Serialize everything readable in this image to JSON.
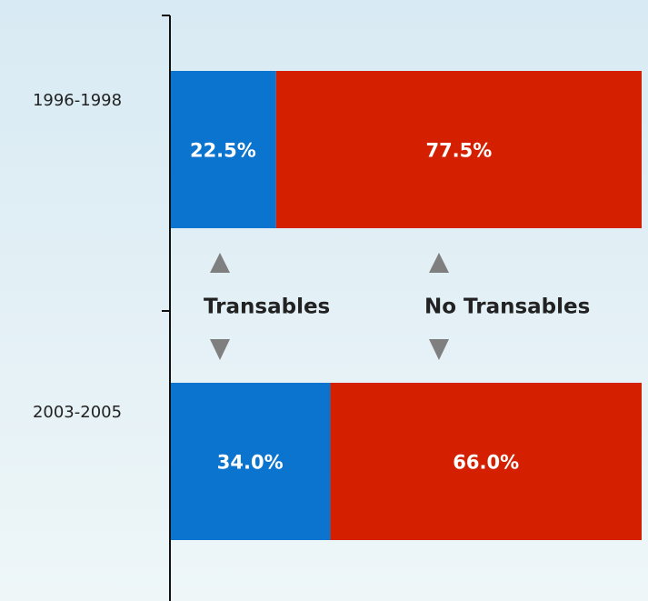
{
  "chart_data": {
    "type": "stacked-bar",
    "categories": [
      "1996-1998",
      "2003-2005"
    ],
    "xlim": [
      0,
      100
    ],
    "series": [
      {
        "name": "Transables",
        "color": "#0b74cf",
        "values": [
          22.5,
          34.0
        ],
        "value_labels": [
          "22.5%",
          "34.0%"
        ]
      },
      {
        "name": "No Transables",
        "color": "#d42000",
        "values": [
          77.5,
          66.0
        ],
        "value_labels": [
          "77.5%",
          "66.0%"
        ]
      }
    ]
  }
}
